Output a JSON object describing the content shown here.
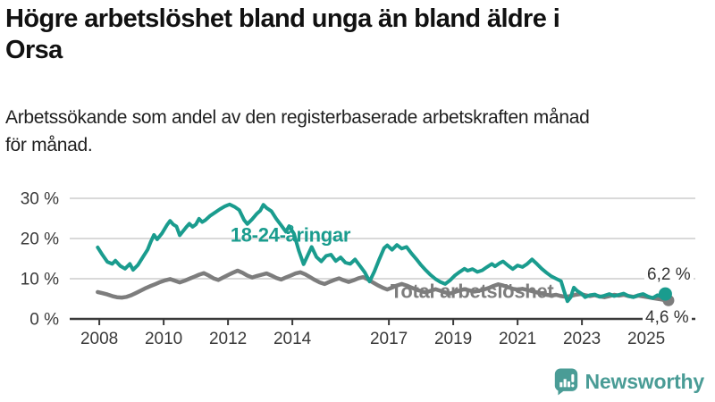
{
  "header": {
    "title": "Högre arbetslöshet bland unga än bland äldre i Orsa",
    "title_line1": "Högre arbetslöshet bland unga än bland äldre i",
    "title_line2": "Orsa",
    "subtitle": "Arbetssökande som andel av den registerbaserade arbetskraften månad för månad.",
    "subtitle_line1": "Arbetssökande som andel av den registerbaserade arbetskraften månad",
    "subtitle_line2": "för månad."
  },
  "colors": {
    "teal": "#1a9c8e",
    "gray": "#7d7d7d",
    "grid": "#d9d9d9",
    "axis": "#3a3a3a",
    "value_label": "#333333",
    "background": "#ffffff",
    "brand_teal": "#4a9c96"
  },
  "chart_data": {
    "type": "line",
    "title": "Högre arbetslöshet bland unga än bland äldre i Orsa",
    "subtitle": "Arbetssökande som andel av den registerbaserade arbetskraften månad för månad.",
    "xlabel": "",
    "ylabel": "",
    "grid": "horizontal",
    "legend_position": "inline-labels",
    "x_axis": {
      "tick_years": [
        2008,
        2010,
        2012,
        2014,
        2017,
        2019,
        2021,
        2023,
        2025
      ],
      "range": [
        2007.1,
        2026.5
      ]
    },
    "y_axis": {
      "tick_values": [
        0,
        10,
        20,
        30
      ],
      "tick_labels": [
        "0 %",
        "10 %",
        "20 %",
        "30 %"
      ],
      "range": [
        0,
        32
      ],
      "unit": "%"
    },
    "series": [
      {
        "name": "18-24-åringar",
        "color": "#1a9c8e",
        "end_label": "6,2 %",
        "end_value": 6.2,
        "line_width": 4,
        "label_pos": {
          "year": 2013.94,
          "value": 21.0,
          "anchor": "middle"
        },
        "points": [
          [
            2007.95,
            17.8
          ],
          [
            2008.1,
            15.9
          ],
          [
            2008.25,
            14.2
          ],
          [
            2008.4,
            13.7
          ],
          [
            2008.5,
            14.5
          ],
          [
            2008.65,
            13.2
          ],
          [
            2008.8,
            12.5
          ],
          [
            2008.95,
            13.7
          ],
          [
            2009.05,
            12.2
          ],
          [
            2009.2,
            13.4
          ],
          [
            2009.35,
            15.3
          ],
          [
            2009.5,
            17.2
          ],
          [
            2009.6,
            19.2
          ],
          [
            2009.7,
            20.9
          ],
          [
            2009.8,
            19.8
          ],
          [
            2009.95,
            21.3
          ],
          [
            2010.1,
            23.3
          ],
          [
            2010.2,
            24.4
          ],
          [
            2010.3,
            23.5
          ],
          [
            2010.4,
            23.0
          ],
          [
            2010.5,
            20.8
          ],
          [
            2010.6,
            21.8
          ],
          [
            2010.7,
            22.8
          ],
          [
            2010.8,
            23.7
          ],
          [
            2010.9,
            22.9
          ],
          [
            2011.0,
            23.5
          ],
          [
            2011.1,
            24.9
          ],
          [
            2011.2,
            24.1
          ],
          [
            2011.3,
            24.6
          ],
          [
            2011.45,
            25.7
          ],
          [
            2011.6,
            26.5
          ],
          [
            2011.75,
            27.3
          ],
          [
            2011.9,
            28.0
          ],
          [
            2012.05,
            28.5
          ],
          [
            2012.2,
            27.9
          ],
          [
            2012.35,
            27.1
          ],
          [
            2012.5,
            24.6
          ],
          [
            2012.6,
            23.6
          ],
          [
            2012.75,
            24.8
          ],
          [
            2012.9,
            26.2
          ],
          [
            2013.0,
            26.9
          ],
          [
            2013.1,
            28.4
          ],
          [
            2013.2,
            27.6
          ],
          [
            2013.35,
            26.8
          ],
          [
            2013.5,
            24.9
          ],
          [
            2013.65,
            23.3
          ],
          [
            2013.8,
            21.7
          ],
          [
            2013.9,
            23.1
          ],
          [
            2014.05,
            21.2
          ],
          [
            2014.2,
            17.0
          ],
          [
            2014.35,
            13.6
          ],
          [
            2014.5,
            16.2
          ],
          [
            2014.6,
            17.9
          ],
          [
            2014.75,
            15.4
          ],
          [
            2014.9,
            14.3
          ],
          [
            2015.05,
            15.7
          ],
          [
            2015.2,
            16.0
          ],
          [
            2015.35,
            14.4
          ],
          [
            2015.5,
            15.3
          ],
          [
            2015.65,
            14.0
          ],
          [
            2015.8,
            13.7
          ],
          [
            2015.95,
            14.8
          ],
          [
            2016.1,
            13.2
          ],
          [
            2016.25,
            11.6
          ],
          [
            2016.4,
            9.3
          ],
          [
            2016.55,
            11.8
          ],
          [
            2016.7,
            14.8
          ],
          [
            2016.85,
            17.6
          ],
          [
            2016.95,
            18.3
          ],
          [
            2017.1,
            17.2
          ],
          [
            2017.25,
            18.4
          ],
          [
            2017.4,
            17.5
          ],
          [
            2017.55,
            17.9
          ],
          [
            2017.7,
            16.3
          ],
          [
            2017.85,
            14.9
          ],
          [
            2018.0,
            13.4
          ],
          [
            2018.15,
            12.1
          ],
          [
            2018.3,
            10.9
          ],
          [
            2018.45,
            9.9
          ],
          [
            2018.6,
            9.2
          ],
          [
            2018.75,
            8.7
          ],
          [
            2018.9,
            9.6
          ],
          [
            2019.05,
            10.8
          ],
          [
            2019.2,
            11.7
          ],
          [
            2019.35,
            12.5
          ],
          [
            2019.45,
            12.0
          ],
          [
            2019.6,
            12.4
          ],
          [
            2019.75,
            11.7
          ],
          [
            2019.9,
            12.1
          ],
          [
            2020.05,
            12.9
          ],
          [
            2020.2,
            13.7
          ],
          [
            2020.3,
            13.1
          ],
          [
            2020.45,
            13.9
          ],
          [
            2020.55,
            14.3
          ],
          [
            2020.7,
            13.3
          ],
          [
            2020.85,
            12.4
          ],
          [
            2021.0,
            13.3
          ],
          [
            2021.15,
            12.9
          ],
          [
            2021.3,
            13.7
          ],
          [
            2021.45,
            14.8
          ],
          [
            2021.6,
            13.7
          ],
          [
            2021.75,
            12.5
          ],
          [
            2021.9,
            11.5
          ],
          [
            2022.05,
            10.6
          ],
          [
            2022.2,
            10.0
          ],
          [
            2022.35,
            9.4
          ],
          [
            2022.45,
            6.8
          ],
          [
            2022.55,
            4.4
          ],
          [
            2022.65,
            5.4
          ],
          [
            2022.75,
            7.8
          ],
          [
            2022.85,
            7.0
          ],
          [
            2023.0,
            6.2
          ],
          [
            2023.1,
            5.4
          ],
          [
            2023.25,
            5.9
          ],
          [
            2023.4,
            6.1
          ],
          [
            2023.55,
            5.5
          ],
          [
            2023.7,
            5.8
          ],
          [
            2023.85,
            6.2
          ],
          [
            2024.0,
            5.7
          ],
          [
            2024.15,
            6.0
          ],
          [
            2024.3,
            6.3
          ],
          [
            2024.45,
            5.7
          ],
          [
            2024.6,
            5.4
          ],
          [
            2024.75,
            5.9
          ],
          [
            2024.9,
            6.2
          ],
          [
            2025.05,
            5.6
          ],
          [
            2025.2,
            5.2
          ],
          [
            2025.35,
            5.9
          ],
          [
            2025.5,
            5.5
          ],
          [
            2025.62,
            6.2
          ]
        ]
      },
      {
        "name": "Total arbetslöshet",
        "color": "#7d7d7d",
        "end_label": "4,6 %",
        "end_value": 4.6,
        "line_width": 4.5,
        "label_pos": {
          "year": 2017.05,
          "value": 7.0,
          "anchor": "start"
        },
        "points": [
          [
            2007.95,
            6.7
          ],
          [
            2008.1,
            6.4
          ],
          [
            2008.25,
            6.1
          ],
          [
            2008.4,
            5.7
          ],
          [
            2008.55,
            5.4
          ],
          [
            2008.7,
            5.3
          ],
          [
            2008.85,
            5.5
          ],
          [
            2009.0,
            5.9
          ],
          [
            2009.15,
            6.5
          ],
          [
            2009.3,
            7.1
          ],
          [
            2009.45,
            7.7
          ],
          [
            2009.6,
            8.2
          ],
          [
            2009.75,
            8.7
          ],
          [
            2009.9,
            9.2
          ],
          [
            2010.05,
            9.6
          ],
          [
            2010.2,
            9.9
          ],
          [
            2010.35,
            9.5
          ],
          [
            2010.5,
            9.1
          ],
          [
            2010.65,
            9.5
          ],
          [
            2010.8,
            10.0
          ],
          [
            2010.95,
            10.5
          ],
          [
            2011.1,
            11.0
          ],
          [
            2011.25,
            11.4
          ],
          [
            2011.4,
            10.8
          ],
          [
            2011.55,
            10.1
          ],
          [
            2011.7,
            9.7
          ],
          [
            2011.85,
            10.3
          ],
          [
            2012.0,
            10.9
          ],
          [
            2012.15,
            11.5
          ],
          [
            2012.3,
            12.0
          ],
          [
            2012.45,
            11.5
          ],
          [
            2012.6,
            10.8
          ],
          [
            2012.75,
            10.3
          ],
          [
            2012.9,
            10.7
          ],
          [
            2013.05,
            11.0
          ],
          [
            2013.2,
            11.3
          ],
          [
            2013.35,
            10.8
          ],
          [
            2013.5,
            10.2
          ],
          [
            2013.65,
            9.8
          ],
          [
            2013.8,
            10.3
          ],
          [
            2013.95,
            10.8
          ],
          [
            2014.1,
            11.3
          ],
          [
            2014.25,
            11.6
          ],
          [
            2014.4,
            11.1
          ],
          [
            2014.55,
            10.4
          ],
          [
            2014.7,
            9.7
          ],
          [
            2014.85,
            9.1
          ],
          [
            2015.0,
            8.7
          ],
          [
            2015.15,
            9.2
          ],
          [
            2015.3,
            9.7
          ],
          [
            2015.45,
            10.1
          ],
          [
            2015.6,
            9.6
          ],
          [
            2015.75,
            9.2
          ],
          [
            2015.9,
            9.6
          ],
          [
            2016.05,
            10.1
          ],
          [
            2016.2,
            10.4
          ],
          [
            2016.35,
            9.8
          ],
          [
            2016.5,
            9.1
          ],
          [
            2016.65,
            8.4
          ],
          [
            2016.8,
            7.8
          ],
          [
            2016.95,
            7.3
          ],
          [
            2017.1,
            7.8
          ],
          [
            2017.25,
            8.3
          ],
          [
            2017.4,
            8.7
          ],
          [
            2017.55,
            8.3
          ],
          [
            2017.7,
            7.8
          ],
          [
            2017.85,
            7.3
          ],
          [
            2018.0,
            6.9
          ],
          [
            2018.15,
            6.6
          ],
          [
            2018.3,
            7.0
          ],
          [
            2018.45,
            7.4
          ],
          [
            2018.6,
            7.0
          ],
          [
            2018.75,
            6.6
          ],
          [
            2018.9,
            6.3
          ],
          [
            2019.05,
            6.7
          ],
          [
            2019.2,
            7.1
          ],
          [
            2019.35,
            7.4
          ],
          [
            2019.5,
            7.1
          ],
          [
            2019.65,
            6.8
          ],
          [
            2019.8,
            7.0
          ],
          [
            2019.95,
            7.3
          ],
          [
            2020.1,
            7.7
          ],
          [
            2020.25,
            8.2
          ],
          [
            2020.4,
            8.6
          ],
          [
            2020.55,
            8.3
          ],
          [
            2020.7,
            7.9
          ],
          [
            2020.85,
            7.5
          ],
          [
            2021.0,
            7.3
          ],
          [
            2021.15,
            7.5
          ],
          [
            2021.3,
            7.2
          ],
          [
            2021.45,
            6.9
          ],
          [
            2021.6,
            6.6
          ],
          [
            2021.75,
            6.3
          ],
          [
            2021.9,
            6.0
          ],
          [
            2022.05,
            5.8
          ],
          [
            2022.2,
            6.0
          ],
          [
            2022.35,
            5.7
          ],
          [
            2022.5,
            5.5
          ],
          [
            2022.65,
            5.7
          ],
          [
            2022.8,
            6.0
          ],
          [
            2022.95,
            6.2
          ],
          [
            2023.1,
            5.9
          ],
          [
            2023.25,
            5.7
          ],
          [
            2023.4,
            5.9
          ],
          [
            2023.55,
            5.6
          ],
          [
            2023.7,
            5.4
          ],
          [
            2023.85,
            5.7
          ],
          [
            2024.0,
            6.0
          ],
          [
            2024.15,
            5.8
          ],
          [
            2024.3,
            6.0
          ],
          [
            2024.45,
            5.7
          ],
          [
            2024.6,
            5.5
          ],
          [
            2024.75,
            5.8
          ],
          [
            2024.9,
            5.6
          ],
          [
            2025.05,
            5.4
          ],
          [
            2025.2,
            5.2
          ],
          [
            2025.35,
            5.0
          ],
          [
            2025.5,
            4.8
          ],
          [
            2025.62,
            4.6
          ]
        ]
      }
    ]
  },
  "footer": {
    "brand": "Newsworthy",
    "logo_icon": "bar-chart-speech-bubble-icon"
  }
}
